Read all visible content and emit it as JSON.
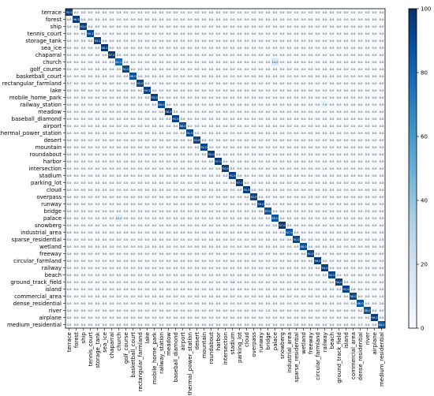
{
  "chart_data": {
    "type": "heatmap",
    "title": "",
    "xlabel": "",
    "ylabel": "",
    "classes": [
      "terrace",
      "forest",
      "ship",
      "tennis_court",
      "storage_tank",
      "sea_ice",
      "chaparral",
      "church",
      "golf_course",
      "basketball_court",
      "rectangular_farmland",
      "lake",
      "mobile_home_park",
      "railway_station",
      "meadow",
      "baseball_diamond",
      "airport",
      "thermal_power_station",
      "desert",
      "mountain",
      "roundabout",
      "harbor",
      "intersection",
      "stadium",
      "parking_lot",
      "cloud",
      "overpass",
      "runway",
      "bridge",
      "palace",
      "snowberg",
      "industrial_area",
      "sparse_residential",
      "wetland",
      "freeway",
      "circular_farmland",
      "railway",
      "beach",
      "ground_track_field",
      "island",
      "commercial_area",
      "dense_residential",
      "river",
      "airplane",
      "medium_residential"
    ],
    "diagonal": [
      95.5,
      96.5,
      93.0,
      90.3,
      93.1,
      98.2,
      97.0,
      81.0,
      91.0,
      88.0,
      92.0,
      94.5,
      93.0,
      89.0,
      96.0,
      93.0,
      88.0,
      91.0,
      92.8,
      92.0,
      95.0,
      97.0,
      93.0,
      93.0,
      97.0,
      95.0,
      92.0,
      93.0,
      87.0,
      85.0,
      97.0,
      87.0,
      91.0,
      88.0,
      91.0,
      96.0,
      94.0,
      92.0,
      94.0,
      93.0,
      90.0,
      86.0,
      88.0,
      96.0,
      84.0
    ],
    "default_offdiagonal": 0.0,
    "offdiagonal_highlights": [
      {
        "row": "terrace",
        "col": "church",
        "value": 0.4
      },
      {
        "row": "terrace",
        "col": "rectangular_farmland",
        "value": 0.3
      },
      {
        "row": "church",
        "col": "palace",
        "value": 14.0
      },
      {
        "row": "rectangular_farmland",
        "col": "terrace",
        "value": 5.7
      },
      {
        "row": "railway_station",
        "col": "railway",
        "value": 7.0
      },
      {
        "row": "palace",
        "col": "church",
        "value": 10.0
      },
      {
        "row": "bridge",
        "col": "river",
        "value": 2.0
      },
      {
        "row": "intersection",
        "col": "railway",
        "value": 1.0
      },
      {
        "row": "commercial_area",
        "col": "medium_residential",
        "value": 1.0
      },
      {
        "row": "dense_residential",
        "col": "medium_residential",
        "value": 2.0
      },
      {
        "row": "medium_residential",
        "col": "dense_residential",
        "value": 2.7
      },
      {
        "row": "medium_residential",
        "col": "sparse_residential",
        "value": 2.0
      },
      {
        "row": "sparse_residential",
        "col": "medium_residential",
        "value": 2.5
      },
      {
        "row": "freeway",
        "col": "overpass",
        "value": 2.0
      },
      {
        "row": "overpass",
        "col": "freeway",
        "value": 2.0
      },
      {
        "row": "ground_track_field",
        "col": "stadium",
        "value": 3.8
      },
      {
        "row": "wetland",
        "col": "lake",
        "value": 2.0
      },
      {
        "row": "river",
        "col": "bridge",
        "value": 1.0
      }
    ],
    "colorbar": {
      "min": 0,
      "max": 100,
      "ticks": [
        0,
        20,
        40,
        60,
        80,
        100
      ],
      "colormap": "Blues"
    }
  }
}
